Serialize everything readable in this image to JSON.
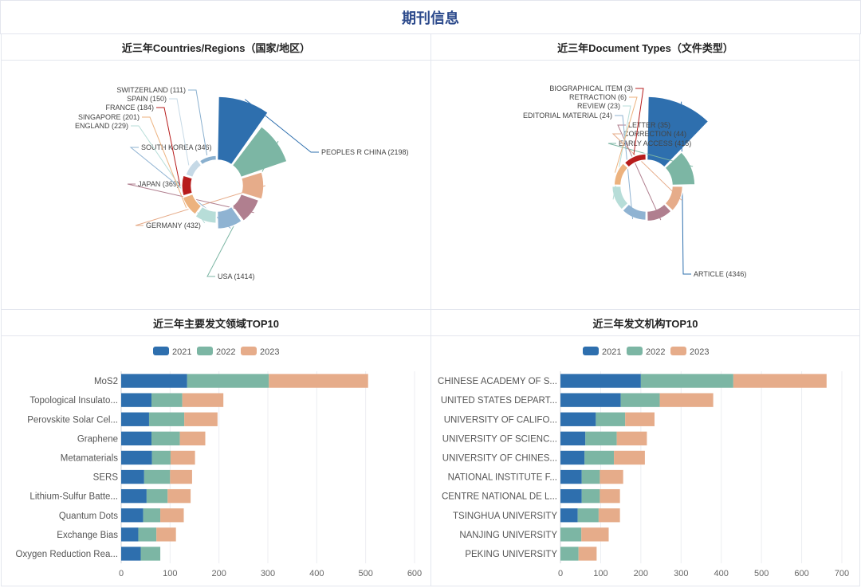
{
  "page": {
    "title": "期刊信息"
  },
  "panels": {
    "countries_title": "近三年Countries/Regions（国家/地区）",
    "doctypes_title": "近三年Document Types（文件类型）",
    "fields_title": "近三年主要发文领域TOP10",
    "orgs_title": "近三年发文机构TOP10"
  },
  "colors": {
    "y2021": "#2e6fae",
    "y2022": "#7cb6a4",
    "y2023": "#e6ac8a"
  },
  "chart_data": [
    {
      "id": "countries",
      "type": "pie",
      "variant": "rose",
      "title": "近三年Countries/Regions（国家/地区）",
      "slices": [
        {
          "label": "PEOPLES R CHINA (2198)",
          "value": 2198,
          "color": "#2e6fae"
        },
        {
          "label": "USA (1414)",
          "value": 1414,
          "color": "#7cb6a4"
        },
        {
          "label": "GERMANY (432)",
          "value": 432,
          "color": "#e6ac8a"
        },
        {
          "label": "JAPAN (369)",
          "value": 369,
          "color": "#b07f8f"
        },
        {
          "label": "SOUTH KOREA (346)",
          "value": 346,
          "color": "#8fb3d2"
        },
        {
          "label": "ENGLAND (229)",
          "value": 229,
          "color": "#b7ddd8"
        },
        {
          "label": "SINGAPORE (201)",
          "value": 201,
          "color": "#ecb27e"
        },
        {
          "label": "FRANCE (184)",
          "value": 184,
          "color": "#b71c1c"
        },
        {
          "label": "SPAIN (150)",
          "value": 150,
          "color": "#c6d9e6"
        },
        {
          "label": "SWITZERLAND (111)",
          "value": 111,
          "color": "#8ab0cf"
        }
      ]
    },
    {
      "id": "doctypes",
      "type": "pie",
      "variant": "rose",
      "title": "近三年Document Types（文件类型）",
      "slices": [
        {
          "label": "ARTICLE (4346)",
          "value": 4346,
          "color": "#2e6fae"
        },
        {
          "label": "EARLY ACCESS (415)",
          "value": 415,
          "color": "#7cb6a4"
        },
        {
          "label": "CORRECTION (44)",
          "value": 44,
          "color": "#e6ac8a"
        },
        {
          "label": "LETTER (35)",
          "value": 35,
          "color": "#b07f8f"
        },
        {
          "label": "EDITORIAL MATERIAL (24)",
          "value": 24,
          "color": "#8fb3d2"
        },
        {
          "label": "REVIEW (23)",
          "value": 23,
          "color": "#b7ddd8"
        },
        {
          "label": "RETRACTION (6)",
          "value": 6,
          "color": "#ecb27e"
        },
        {
          "label": "BIOGRAPHICAL ITEM (3)",
          "value": 3,
          "color": "#b71c1c"
        }
      ]
    },
    {
      "id": "fields",
      "type": "bar",
      "orientation": "horizontal",
      "stacked": true,
      "title": "近三年主要发文领域TOP10",
      "legend": [
        "2021",
        "2022",
        "2023"
      ],
      "categories": [
        "MoS2",
        "Topological Insulato...",
        "Perovskite Solar Cel...",
        "Graphene",
        "Metamaterials",
        "SERS",
        "Lithium-Sulfur Batte...",
        "Quantum Dots",
        "Exchange Bias",
        "Oxygen Reduction Rea..."
      ],
      "series": [
        {
          "name": "2021",
          "values": [
            135,
            62,
            57,
            62,
            63,
            47,
            52,
            45,
            35,
            40
          ]
        },
        {
          "name": "2022",
          "values": [
            167,
            63,
            72,
            58,
            38,
            53,
            43,
            35,
            37,
            40
          ]
        },
        {
          "name": "2023",
          "values": [
            203,
            84,
            68,
            52,
            50,
            45,
            47,
            48,
            40,
            0
          ]
        }
      ],
      "xlim": [
        0,
        600
      ],
      "xticks": [
        0,
        100,
        200,
        300,
        400,
        500,
        600
      ]
    },
    {
      "id": "orgs",
      "type": "bar",
      "orientation": "horizontal",
      "stacked": true,
      "title": "近三年发文机构TOP10",
      "legend": [
        "2021",
        "2022",
        "2023"
      ],
      "categories": [
        "CHINESE ACADEMY OF S...",
        "UNITED STATES DEPART...",
        "UNIVERSITY OF CALIFO...",
        "UNIVERSITY OF SCIENC...",
        "UNIVERSITY OF CHINES...",
        "NATIONAL INSTITUTE F...",
        "CENTRE NATIONAL DE L...",
        "TSINGHUA UNIVERSITY",
        "NANJING UNIVERSITY",
        "PEKING UNIVERSITY"
      ],
      "series": [
        {
          "name": "2021",
          "values": [
            200,
            150,
            88,
            62,
            60,
            53,
            53,
            43,
            0,
            0
          ]
        },
        {
          "name": "2022",
          "values": [
            230,
            97,
            73,
            78,
            73,
            45,
            45,
            52,
            52,
            45
          ]
        },
        {
          "name": "2023",
          "values": [
            232,
            133,
            73,
            75,
            77,
            58,
            50,
            53,
            68,
            45
          ]
        }
      ],
      "xlim": [
        0,
        700
      ],
      "xticks": [
        0,
        100,
        200,
        300,
        400,
        500,
        600,
        700
      ]
    }
  ]
}
